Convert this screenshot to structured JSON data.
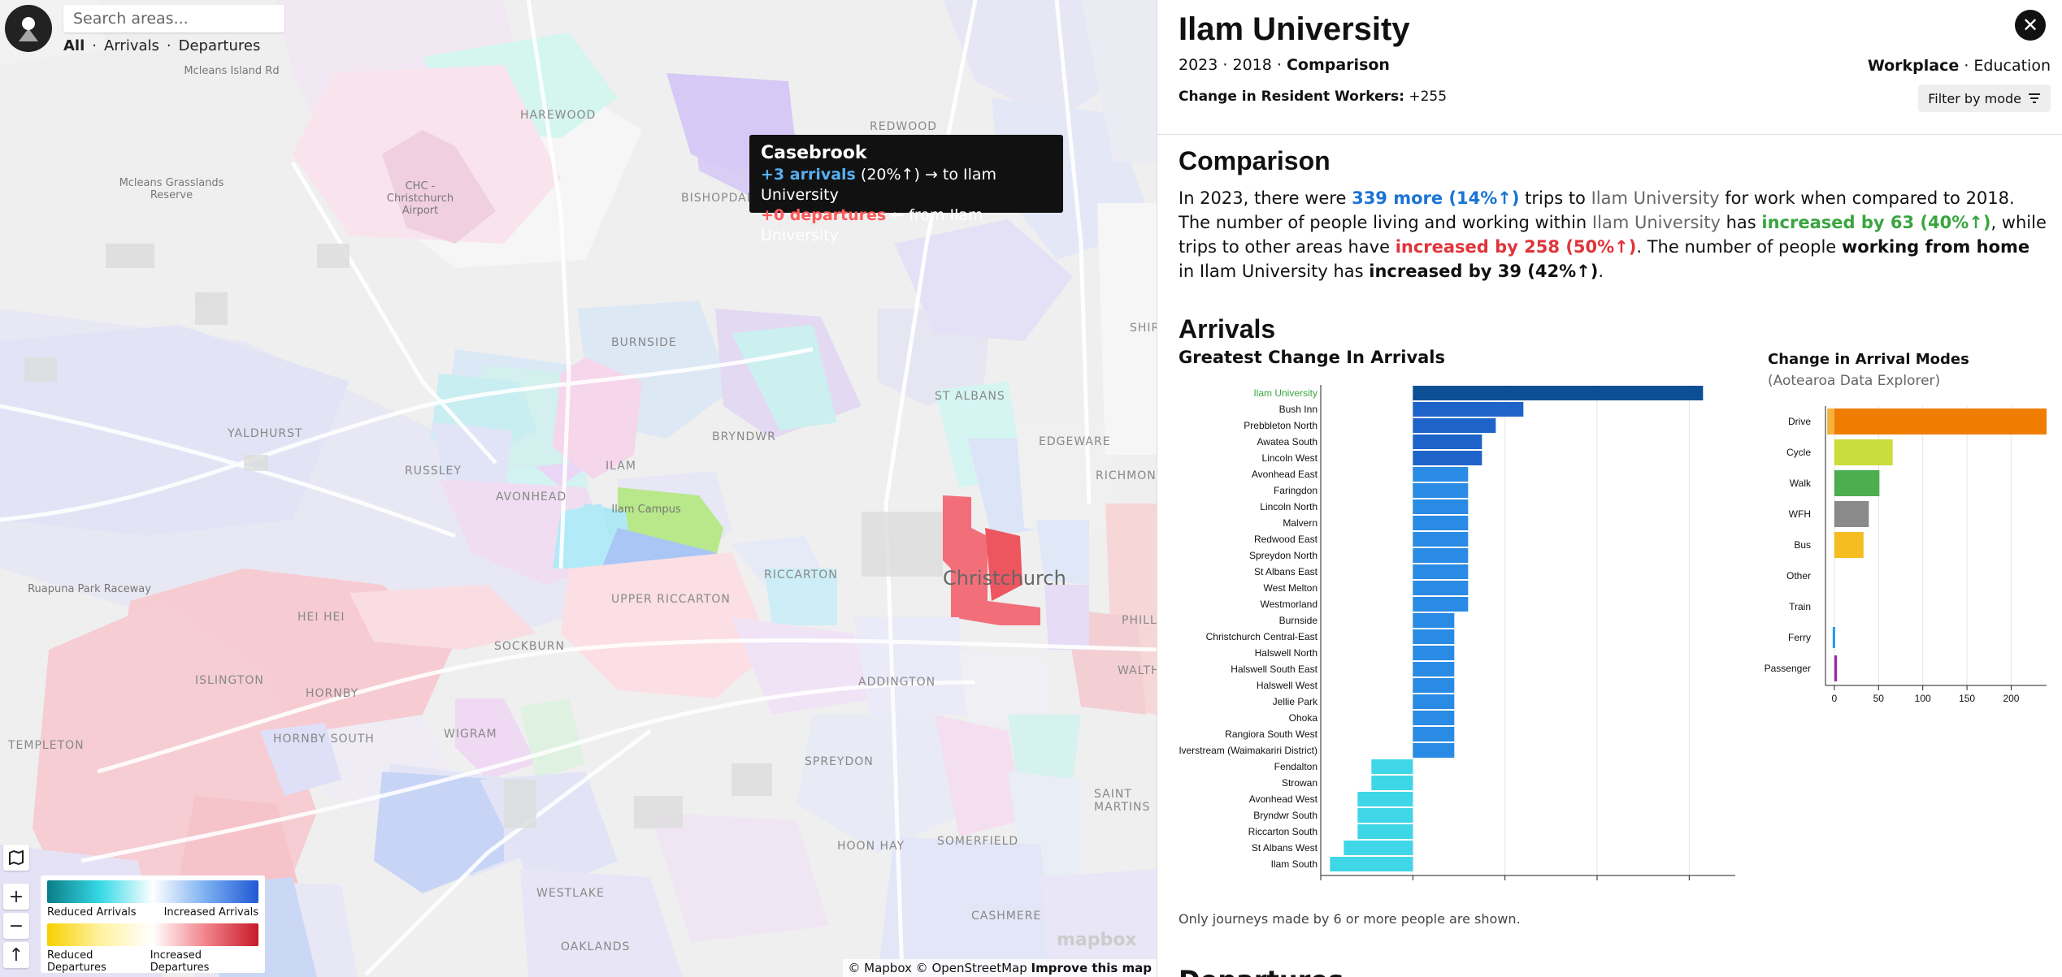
{
  "map": {
    "search_placeholder": "Search areas...",
    "nav": [
      "All",
      "Arrivals",
      "Departures"
    ],
    "city_label": "Christchurch",
    "tooltip": {
      "area": "Casebrook",
      "arrivals": "+3 arrivals",
      "arrivals_pct": "(20%↑)",
      "arrivals_to": "→ to Ilam University",
      "departures": "+0 departures",
      "departures_from": "← from Ilam University"
    },
    "legend": {
      "reduced_arrivals": "Reduced Arrivals",
      "increased_arrivals": "Increased Arrivals",
      "reduced_departures": "Reduced Departures",
      "increased_departures": "Increased Departures"
    },
    "controls": {
      "zoom_in": "+",
      "zoom_out": "−",
      "north": "↑"
    },
    "attribution": "© Mapbox © OpenStreetMap",
    "improve": "Improve this map",
    "mapbox_logo": "mapbox",
    "sub_labels": [
      "HAREWOOD",
      "REDWOOD",
      "BISHOPDALE",
      "BURNSIDE",
      "BRYNDWR",
      "ST ALBANS",
      "EDGEWARE",
      "RICHMOND",
      "YALDHURST",
      "RUSSLEY",
      "AVONHEAD",
      "ILAM",
      "RICCARTON",
      "UPPER RICCARTON",
      "HEI HEI",
      "SOCKBURN",
      "ISLINGTON",
      "HORNBY",
      "HORNBY SOUTH",
      "WIGRAM",
      "ADDINGTON",
      "SPREYDON",
      "HOON HAY",
      "SOMERFIELD",
      "CASHMERE",
      "WESTLAKE",
      "OAKLANDS",
      "SAINT MARTINS",
      "TEMPLETON",
      "WALTHAM",
      "PHILL",
      "SHIRL"
    ],
    "place_labels": [
      "CHC - Christchurch Airport",
      "Mcleans Grasslands Reserve",
      "Ruapuna Park Raceway",
      "Ilam Campus",
      "Mcleans Island Rd"
    ]
  },
  "panel": {
    "title": "Ilam University",
    "years_a": "2023",
    "years_b": "2018",
    "years_mode": "Comparison",
    "change_label": "Change in Resident Workers:",
    "change_value": "+255",
    "close_icon": "✕",
    "mode_active": "Workplace",
    "mode_other": "Education",
    "filter_label": "Filter by mode",
    "comparison_heading": "Comparison",
    "comparison_text": {
      "p1": "In 2023, there were ",
      "more": "339 more (14%↑)",
      "p2": " trips to ",
      "area1": "Ilam University",
      "p3": " for work when compared to 2018. The number of people living and working within ",
      "area2": "Ilam University",
      "p4": " has ",
      "inc1": "increased by 63 (40%↑)",
      "p5": ", while trips to other areas have ",
      "inc2": "increased by 258 (50%↑)",
      "p6": ". The number of people ",
      "wfh": "working from home",
      "p7": " in Ilam University has ",
      "inc3": "increased by 39 (42%↑)",
      "p8": "."
    },
    "arrivals_heading": "Arrivals",
    "greatest_change_heading": "Greatest Change In Arrivals",
    "modes_heading": "Change in Arrival Modes",
    "modes_source": "(Aotearoa Data Explorer)",
    "note": "Only journeys made by 6 or more people are shown.",
    "next_heading": "Departures"
  },
  "chart_data": [
    {
      "type": "bar",
      "orientation": "horizontal",
      "title": "Greatest Change In Arrivals",
      "categories": [
        "Ilam University",
        "Bush Inn",
        "Prebbleton North",
        "Awatea South",
        "Lincoln West",
        "Avonhead East",
        "Faringdon",
        "Lincoln North",
        "Malvern",
        "Redwood East",
        "Spreydon North",
        "St Albans East",
        "West Melton",
        "Westmorland",
        "Burnside",
        "Christchurch Central-East",
        "Halswell North",
        "Halswell South East",
        "Halswell West",
        "Jellie Park",
        "Ohoka",
        "Rangiora South West",
        "Silverstream (Waimakariri District)",
        "Fendalton",
        "Strowan",
        "Avonhead West",
        "Bryndwr South",
        "Riccarton South",
        "St Albans West",
        "Ilam South"
      ],
      "values": [
        63,
        24,
        18,
        15,
        15,
        12,
        12,
        12,
        12,
        12,
        12,
        12,
        12,
        12,
        9,
        9,
        9,
        9,
        9,
        9,
        9,
        9,
        9,
        -9,
        -9,
        -12,
        -12,
        -12,
        -15,
        -18
      ],
      "xlim": [
        -20,
        70
      ],
      "xticks": [
        -20,
        0,
        20,
        40,
        60
      ],
      "highlight": "Ilam University",
      "colors": {
        "self": "#0d4f94",
        "large": "#1e64c8",
        "medium": "#2a8be4",
        "negative": "#3fd6e8",
        "self_label": "#3aa540"
      }
    },
    {
      "type": "bar",
      "orientation": "horizontal",
      "title": "Change in Arrival Modes",
      "categories": [
        "Drive",
        "Cycle",
        "Walk",
        "WFH",
        "Bus",
        "Other",
        "Train",
        "Ferry",
        "Passenger"
      ],
      "values": [
        240,
        66,
        51,
        39,
        33,
        0,
        0,
        0,
        3
      ],
      "xlim": [
        -10,
        240
      ],
      "xticks": [
        0,
        50,
        100,
        150,
        200
      ],
      "colors": [
        "#f07c00",
        "#c9dd3c",
        "#4cae4f",
        "#8a8a8a",
        "#f5bd1f",
        "#999999",
        "#999999",
        "#2196f3",
        "#9c27b0"
      ],
      "drive_negative_part": {
        "value": -8,
        "color": "#f5b23c"
      }
    }
  ]
}
